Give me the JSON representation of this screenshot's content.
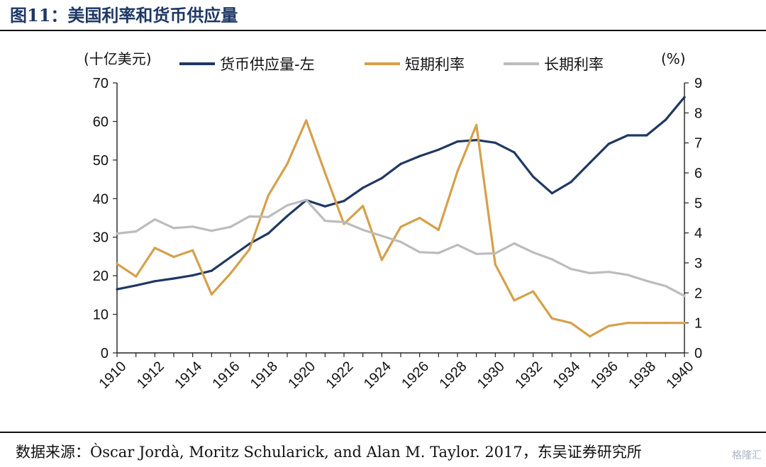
{
  "figure": {
    "title": "图11：美国利率和货币供应量",
    "source": "数据来源：Òscar Jordà, Moritz Schularick, and Alan M. Taylor. 2017，东吴证券研究所",
    "watermark": "格隆汇"
  },
  "chart_data": {
    "type": "line",
    "x": [
      1910,
      1911,
      1912,
      1913,
      1914,
      1915,
      1916,
      1917,
      1918,
      1919,
      1920,
      1921,
      1922,
      1923,
      1924,
      1925,
      1926,
      1927,
      1928,
      1929,
      1930,
      1931,
      1932,
      1933,
      1934,
      1935,
      1936,
      1937,
      1938,
      1939,
      1940
    ],
    "x_tick_labels": [
      "1910",
      "1912",
      "1914",
      "1916",
      "1918",
      "1920",
      "1922",
      "1924",
      "1926",
      "1928",
      "1930",
      "1932",
      "1934",
      "1936",
      "1938",
      "1940"
    ],
    "left_axis": {
      "unit_label": "(十亿美元)",
      "range": [
        0,
        70
      ],
      "ticks": [
        "0",
        "10",
        "20",
        "30",
        "40",
        "50",
        "60",
        "70"
      ]
    },
    "right_axis": {
      "unit_label": "(%)",
      "range": [
        0,
        9
      ],
      "ticks": [
        "0",
        "1",
        "2",
        "3",
        "4",
        "5",
        "6",
        "7",
        "8",
        "9"
      ]
    },
    "series": [
      {
        "name": "货币供应量-左",
        "axis": "left",
        "color": "#1f3864",
        "values": [
          16.5,
          17.5,
          18.6,
          19.3,
          20.1,
          21.3,
          24.8,
          28.3,
          31.0,
          35.5,
          39.6,
          38.0,
          39.4,
          42.8,
          45.3,
          49.0,
          51.0,
          52.7,
          54.8,
          55.2,
          54.5,
          52.0,
          45.7,
          41.4,
          44.3,
          49.3,
          54.2,
          56.4,
          56.4,
          60.4,
          66.3
        ]
      },
      {
        "name": "短期利率",
        "axis": "right",
        "color": "#d6a04a",
        "values": [
          2.97,
          2.55,
          3.5,
          3.2,
          3.42,
          1.95,
          2.65,
          3.45,
          5.25,
          6.3,
          7.75,
          6.0,
          4.3,
          4.9,
          3.1,
          4.2,
          4.5,
          4.1,
          6.05,
          7.6,
          2.95,
          1.75,
          2.05,
          1.15,
          1.0,
          0.55,
          0.9,
          1.0,
          1.0,
          1.0,
          1.0
        ]
      },
      {
        "name": "长期利率",
        "axis": "right",
        "color": "#bcbcbc",
        "values": [
          3.98,
          4.05,
          4.45,
          4.16,
          4.21,
          4.07,
          4.2,
          4.55,
          4.53,
          4.92,
          5.1,
          4.4,
          4.36,
          4.1,
          3.9,
          3.7,
          3.36,
          3.33,
          3.6,
          3.3,
          3.32,
          3.65,
          3.35,
          3.12,
          2.8,
          2.66,
          2.7,
          2.6,
          2.4,
          2.23,
          1.9
        ]
      }
    ],
    "legend_position": "top",
    "grid": false
  }
}
